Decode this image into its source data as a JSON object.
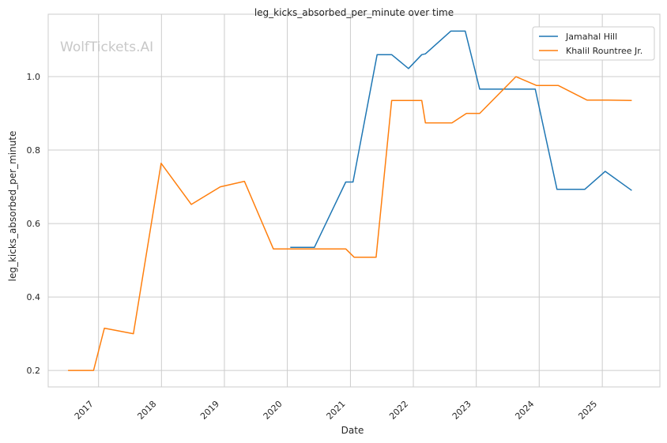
{
  "chart_data": {
    "type": "line",
    "title": "leg_kicks_absorbed_per_minute over time",
    "xlabel": "Date",
    "ylabel": "leg_kicks_absorbed_per_minute",
    "watermark": "WolfTickets.AI",
    "x_ticks": [
      "2017",
      "2018",
      "2019",
      "2020",
      "2021",
      "2022",
      "2023",
      "2024",
      "2025"
    ],
    "y_ticks": [
      "0.2",
      "0.4",
      "0.6",
      "0.8",
      "1.0"
    ],
    "xlim": [
      "2016-03-15",
      "2025-12-01"
    ],
    "ylim": [
      0.155,
      1.17
    ],
    "grid": true,
    "legend_position": "top-right",
    "colors": {
      "Jamahal Hill": "#1f77b4",
      "Khalil Rountree Jr.": "#ff7f0e"
    },
    "series": [
      {
        "name": "Jamahal Hill",
        "points": [
          [
            "2020-01-18",
            0.535
          ],
          [
            "2020-06-06",
            0.535
          ],
          [
            "2020-12-05",
            0.713
          ],
          [
            "2021-01-16",
            0.713
          ],
          [
            "2021-06-05",
            1.06
          ],
          [
            "2021-08-28",
            1.06
          ],
          [
            "2021-12-04",
            1.022
          ],
          [
            "2022-02-19",
            1.06
          ],
          [
            "2022-03-12",
            1.062
          ],
          [
            "2022-08-06",
            1.124
          ],
          [
            "2022-10-29",
            1.124
          ],
          [
            "2023-01-21",
            0.966
          ],
          [
            "2023-12-09",
            0.966
          ],
          [
            "2024-04-13",
            0.693
          ],
          [
            "2024-09-21",
            0.693
          ],
          [
            "2025-01-18",
            0.742
          ],
          [
            "2025-06-21",
            0.69
          ]
        ]
      },
      {
        "name": "Khalil Rountree Jr.",
        "points": [
          [
            "2016-07-08",
            0.2
          ],
          [
            "2016-12-03",
            0.2
          ],
          [
            "2017-02-04",
            0.315
          ],
          [
            "2017-07-22",
            0.3
          ],
          [
            "2017-12-30",
            0.764
          ],
          [
            "2018-06-23",
            0.652
          ],
          [
            "2018-12-08",
            0.7
          ],
          [
            "2019-04-27",
            0.715
          ],
          [
            "2019-10-12",
            0.531
          ],
          [
            "2020-12-05",
            0.531
          ],
          [
            "2021-01-23",
            0.508
          ],
          [
            "2021-05-30",
            0.508
          ],
          [
            "2021-08-28",
            0.935
          ],
          [
            "2022-02-19",
            0.935
          ],
          [
            "2022-03-12",
            0.874
          ],
          [
            "2022-08-13",
            0.874
          ],
          [
            "2022-11-05",
            0.9
          ],
          [
            "2023-01-21",
            0.9
          ],
          [
            "2023-08-19",
            1.0
          ],
          [
            "2023-12-16",
            0.976
          ],
          [
            "2024-04-20",
            0.976
          ],
          [
            "2024-10-05",
            0.936
          ],
          [
            "2025-02-01",
            0.936
          ],
          [
            "2025-06-21",
            0.935
          ]
        ]
      }
    ]
  }
}
